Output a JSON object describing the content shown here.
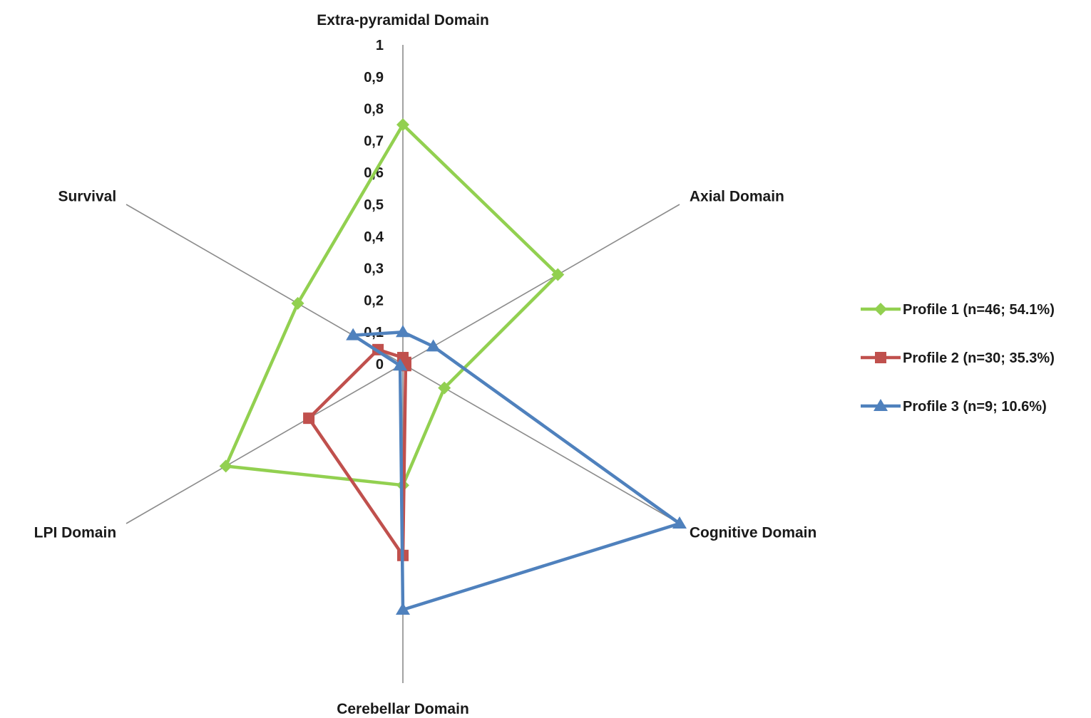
{
  "chart_data": {
    "type": "radar",
    "axes": [
      "Extra-pyramidal Domain",
      "Axial Domain",
      "Cognitive Domain",
      "Cerebellar Domain",
      "LPI Domain",
      "Survival"
    ],
    "ticks": [
      "0",
      "0,1",
      "0,2",
      "0,3",
      "0,4",
      "0,5",
      "0,6",
      "0,7",
      "0,8",
      "0,9",
      "1"
    ],
    "range": [
      0,
      1
    ],
    "grid": false,
    "legend_position": "right",
    "series": [
      {
        "name": "Profile 1 (n=46; 54.1%)",
        "color": "#92d050",
        "marker": "diamond",
        "values": [
          0.75,
          0.56,
          0.15,
          0.38,
          0.64,
          0.38
        ]
      },
      {
        "name": "Profile 2 (n=30; 35.3%)",
        "color": "#c0504d",
        "marker": "square",
        "values": [
          0.02,
          0.01,
          0.01,
          0.6,
          0.34,
          0.09
        ]
      },
      {
        "name": "Profile 3 (n=9; 10.6%)",
        "color": "#4f81bd",
        "marker": "triangle",
        "values": [
          0.1,
          0.11,
          1.0,
          0.77,
          0.01,
          0.18
        ]
      }
    ]
  }
}
